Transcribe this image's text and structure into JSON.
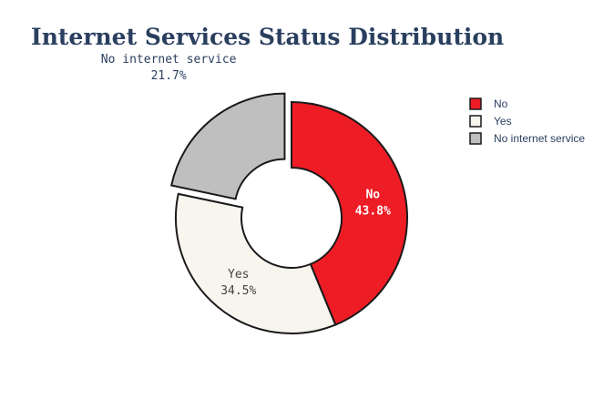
{
  "chart_data": {
    "type": "pie",
    "hole": true,
    "title": "Internet Services Status Distribution",
    "categories": [
      "No",
      "Yes",
      "No internet service"
    ],
    "values": [
      43.8,
      34.5,
      21.7
    ],
    "percent_labels": [
      "43.8%",
      "34.5%",
      "21.7%"
    ],
    "colors": [
      "#ee1c25",
      "#f8f5ef",
      "#bfbfbf"
    ],
    "label_colors": [
      "#ffffff",
      "#444444",
      "#2a3f5f"
    ],
    "pulled": [
      false,
      false,
      true
    ],
    "legend": {
      "position": "top-right",
      "entries": [
        "No",
        "Yes",
        "No internet service"
      ]
    }
  }
}
